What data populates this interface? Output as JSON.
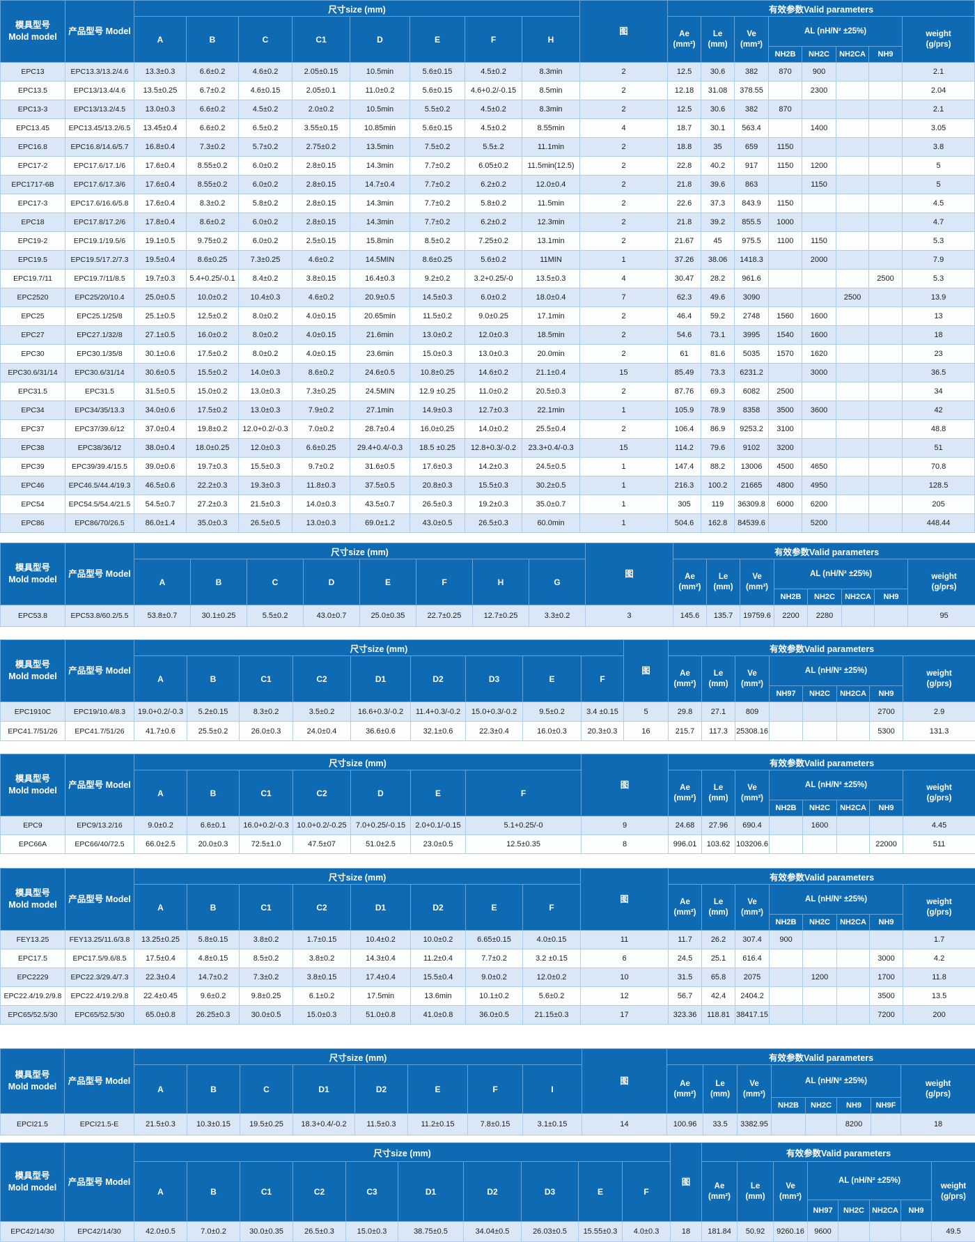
{
  "header_labels": {
    "mold_model": "模具型号\nMold model",
    "product_model": "产品型号",
    "model": "Model",
    "size": "尺寸size (mm)",
    "fig": "图",
    "valid_params": "有效参数Valid parameters",
    "ae": "Ae\n(mm²)",
    "le": "Le\n(mm)",
    "ve": "Ve\n(mm³)",
    "al": "AL (nH/N² ±25%)",
    "weight": "weight\n(g/prs)"
  },
  "colors": {
    "header_blue": "#0e6ab3",
    "row_alt_blue": "#d9e7f6",
    "row_white": "#fdfeff",
    "grid_line": "#aecdec"
  },
  "tables": [
    {
      "dim_cols": [
        "A",
        "B",
        "C",
        "C1",
        "D",
        "E",
        "F",
        "H"
      ],
      "al_cols": [
        "NH2B",
        "NH2C",
        "NH2CA",
        "NH9"
      ],
      "rows": [
        [
          "EPC13",
          "EPC13.3/13.2/4.6",
          "13.3±0.3",
          "6.6±0.2",
          "4.6±0.2",
          "2.05±0.15",
          "10.5min",
          "5.6±0.15",
          "4.5±0.2",
          "8.3min",
          "2",
          "12.5",
          "30.6",
          "382",
          "870",
          "900",
          "",
          "",
          "2.1"
        ],
        [
          "EPC13.5",
          "EPC13/13.4/4.6",
          "13.5±0.25",
          "6.7±0.2",
          "4.6±0.15",
          "2.05±0.1",
          "11.0±0.2",
          "5.6±0.15",
          "4.6+0.2/-0.15",
          "8.5min",
          "2",
          "12.18",
          "31.08",
          "378.55",
          "",
          "2300",
          "",
          "",
          "2.04"
        ],
        [
          "EPC13-3",
          "EPC13/13.2/4.5",
          "13.0±0.3",
          "6.6±0.2",
          "4.5±0.2",
          "2.0±0.2",
          "10.5min",
          "5.5±0.2",
          "4.5±0.2",
          "8.3min",
          "2",
          "12.5",
          "30.6",
          "382",
          "870",
          "",
          "",
          "",
          "2.1"
        ],
        [
          "EPC13.45",
          "EPC13.45/13.2/6.5",
          "13.45±0.4",
          "6.6±0.2",
          "6.5±0.2",
          "3.55±0.15",
          "10.85min",
          "5.6±0.15",
          "4.5±0.2",
          "8.55min",
          "4",
          "18.7",
          "30.1",
          "563.4",
          "",
          "1400",
          "",
          "",
          "3.05"
        ],
        [
          "EPC16.8",
          "EPC16.8/14.6/5.7",
          "16.8±0.4",
          "7.3±0.2",
          "5.7±0.2",
          "2.75±0.2",
          "13.5min",
          "7.5±0.2",
          "5.5±.2",
          "11.1min",
          "2",
          "18.8",
          "35",
          "659",
          "1150",
          "",
          "",
          "",
          "3.8"
        ],
        [
          "EPC17-2",
          "EPC17.6/17.1/6",
          "17.6±0.4",
          "8.55±0.2",
          "6.0±0.2",
          "2.8±0.15",
          "14.3min",
          "7.7±0.2",
          "6.05±0.2",
          "11.5min(12.5)",
          "2",
          "22.8",
          "40.2",
          "917",
          "1150",
          "1200",
          "",
          "",
          "5"
        ],
        [
          "EPC1717-6B",
          "EPC17.6/17.3/6",
          "17.6±0.4",
          "8.55±0.2",
          "6.0±0.2",
          "2.8±0.15",
          "14.7±0.4",
          "7.7±0.2",
          "6.2±0.2",
          "12.0±0.4",
          "2",
          "21.8",
          "39.6",
          "863",
          "",
          "1150",
          "",
          "",
          "5"
        ],
        [
          "EPC17-3",
          "EPC17.6/16.6/5.8",
          "17.6±0.4",
          "8.3±0.2",
          "5.8±0.2",
          "2.8±0.15",
          "14.3min",
          "7.7±0.2",
          "5.8±0.2",
          "11.5min",
          "2",
          "22.6",
          "37.3",
          "843.9",
          "1150",
          "",
          "",
          "",
          "4.5"
        ],
        [
          "EPC18",
          "EPC17.8/17.2/6",
          "17.8±0.4",
          "8.6±0.2",
          "6.0±0.2",
          "2.8±0.15",
          "14.3min",
          "7.7±0.2",
          "6.2±0.2",
          "12.3min",
          "2",
          "21.8",
          "39.2",
          "855.5",
          "1000",
          "",
          "",
          "",
          "4.7"
        ],
        [
          "EPC19-2",
          "EPC19.1/19.5/6",
          "19.1±0.5",
          "9.75±0.2",
          "6.0±0.2",
          "2.5±0.15",
          "15.8min",
          "8.5±0.2",
          "7.25±0.2",
          "13.1min",
          "2",
          "21.67",
          "45",
          "975.5",
          "1100",
          "1150",
          "",
          "",
          "5.3"
        ],
        [
          "EPC19.5",
          "EPC19.5/17.2/7.3",
          "19.5±0.4",
          "8.6±0.25",
          "7.3±0.25",
          "4.6±0.2",
          "14.5MIN",
          "8.6±0.25",
          "5.6±0.2",
          "11MIN",
          "1",
          "37.26",
          "38.06",
          "1418.3",
          "",
          "2000",
          "",
          "",
          "7.9"
        ],
        [
          "EPC19.7/11",
          "EPC19.7/11/8.5",
          "19.7±0.3",
          "5.4+0.25/-0.1",
          "8.4±0.2",
          "3.8±0.15",
          "16.4±0.3",
          "9.2±0.2",
          "3.2+0.25/-0",
          "13.5±0.3",
          "4",
          "30.47",
          "28.2",
          "961.6",
          "",
          "",
          "",
          "2500",
          "5.3"
        ],
        [
          "EPC2520",
          "EPC25/20/10.4",
          "25.0±0.5",
          "10.0±0.2",
          "10.4±0.3",
          "4.6±0.2",
          "20.9±0.5",
          "14.5±0.3",
          "6.0±0.2",
          "18.0±0.4",
          "7",
          "62.3",
          "49.6",
          "3090",
          "",
          "",
          "2500",
          "",
          "13.9"
        ],
        [
          "EPC25",
          "EPC25.1/25/8",
          "25.1±0.5",
          "12.5±0.2",
          "8.0±0.2",
          "4.0±0.15",
          "20.65min",
          "11.5±0.2",
          "9.0±0.25",
          "17.1min",
          "2",
          "46.4",
          "59.2",
          "2748",
          "1560",
          "1600",
          "",
          "",
          "13"
        ],
        [
          "EPC27",
          "EPC27.1/32/8",
          "27.1±0.5",
          "16.0±0.2",
          "8.0±0.2",
          "4.0±0.15",
          "21.6min",
          "13.0±0.2",
          "12.0±0.3",
          "18.5min",
          "2",
          "54.6",
          "73.1",
          "3995",
          "1540",
          "1600",
          "",
          "",
          "18"
        ],
        [
          "EPC30",
          "EPC30.1/35/8",
          "30.1±0.6",
          "17.5±0.2",
          "8.0±0.2",
          "4.0±0.15",
          "23.6min",
          "15.0±0.3",
          "13.0±0.3",
          "20.0min",
          "2",
          "61",
          "81.6",
          "5035",
          "1570",
          "1620",
          "",
          "",
          "23"
        ],
        [
          "EPC30.6/31/14",
          "EPC30.6/31/14",
          "30.6±0.5",
          "15.5±0.2",
          "14.0±0.3",
          "8.6±0.2",
          "24.6±0.5",
          "10.8±0.25",
          "14.6±0.2",
          "21.1±0.4",
          "15",
          "85.49",
          "73.3",
          "6231.2",
          "",
          "3000",
          "",
          "",
          "36.5"
        ],
        [
          "EPC31.5",
          "EPC31.5",
          "31.5±0.5",
          "15.0±0.2",
          "13.0±0.3",
          "7.3±0.25",
          "24.5MIN",
          "12.9 ±0.25",
          "11.0±0.2",
          "20.5±0.3",
          "2",
          "87.76",
          "69.3",
          "6082",
          "2500",
          "",
          "",
          "",
          "34"
        ],
        [
          "EPC34",
          "EPC34/35/13.3",
          "34.0±0.6",
          "17.5±0.2",
          "13.0±0.3",
          "7.9±0.2",
          "27.1min",
          "14.9±0.3",
          "12.7±0.3",
          "22.1min",
          "1",
          "105.9",
          "78.9",
          "8358",
          "3500",
          "3600",
          "",
          "",
          "42"
        ],
        [
          "EPC37",
          "EPC37/39.6/12",
          "37.0±0.4",
          "19.8±0.2",
          "12.0+0.2/-0.3",
          "7.0±0.2",
          "28.7±0.4",
          "16.0±0.25",
          "14.0±0.2",
          "25.5±0.4",
          "2",
          "106.4",
          "86.9",
          "9253.2",
          "3100",
          "",
          "",
          "",
          "48.8"
        ],
        [
          "EPC38",
          "EPC38/36/12",
          "38.0±0.4",
          "18.0±0.25",
          "12.0±0.3",
          "6.6±0.25",
          "29.4+0.4/-0.3",
          "18.5 ±0.25",
          "12.8+0.3/-0.2",
          "23.3+0.4/-0.3",
          "15",
          "114.2",
          "79.6",
          "9102",
          "3200",
          "",
          "",
          "",
          "51"
        ],
        [
          "EPC39",
          "EPC39/39.4/15.5",
          "39.0±0.6",
          "19.7±0.3",
          "15.5±0.3",
          "9.7±0.2",
          "31.6±0.5",
          "17.6±0.3",
          "14.2±0.3",
          "24.5±0.5",
          "1",
          "147.4",
          "88.2",
          "13006",
          "4500",
          "4650",
          "",
          "",
          "70.8"
        ],
        [
          "EPC46",
          "EPC46.5/44.4/19.3",
          "46.5±0.6",
          "22.2±0.3",
          "19.3±0.3",
          "11.8±0.3",
          "37.5±0.5",
          "20.8±0.3",
          "15.5±0.3",
          "30.2±0.5",
          "1",
          "216.3",
          "100.2",
          "21665",
          "4800",
          "4950",
          "",
          "",
          "128.5"
        ],
        [
          "EPC54",
          "EPC54.5/54.4/21.5",
          "54.5±0.7",
          "27.2±0.3",
          "21.5±0.3",
          "14.0±0.3",
          "43.5±0.7",
          "26.5±0.3",
          "19.2±0.3",
          "35.0±0.7",
          "1",
          "305",
          "119",
          "36309.8",
          "6000",
          "6200",
          "",
          "",
          "205"
        ],
        [
          "EPC86",
          "EPC86/70/26.5",
          "86.0±1.4",
          "35.0±0.3",
          "26.5±0.5",
          "13.0±0.3",
          "69.0±1.2",
          "43.0±0.5",
          "26.5±0.3",
          "60.0min",
          "1",
          "504.6",
          "162.8",
          "84539.6",
          "",
          "5200",
          "",
          "",
          "448.44"
        ]
      ]
    },
    {
      "dim_cols": [
        "A",
        "B",
        "C",
        "D",
        "E",
        "F",
        "H",
        "G"
      ],
      "al_cols": [
        "NH2B",
        "NH2C",
        "NH2CA",
        "NH9"
      ],
      "rows": [
        [
          "EPC53.8",
          "EPC53.8/60.2/5.5",
          "53.8±0.7",
          "30.1±0.25",
          "5.5±0.2",
          "43.0±0.7",
          "25.0±0.35",
          "22.7±0.25",
          "12.7±0.25",
          "3.3±0.2",
          "3",
          "145.6",
          "135.7",
          "19759.6",
          "2200",
          "2280",
          "",
          "",
          "95"
        ]
      ]
    },
    {
      "dim_cols": [
        "A",
        "B",
        "C1",
        "C2",
        "D1",
        "D2",
        "D3",
        "E",
        "F"
      ],
      "al_cols": [
        "NH97",
        "NH2C",
        "NH2CA",
        "NH9"
      ],
      "rows": [
        [
          "EPC1910C",
          "EPC19/10.4/8.3",
          "19.0+0.2/-0.3",
          "5.2±0.15",
          "8.3±0.2",
          "3.5±0.2",
          "16.6+0.3/-0.2",
          "11.4+0.3/-0.2",
          "15.0+0.3/-0.2",
          "9.5±0.2",
          "3.4 ±0.15",
          "5",
          "29.8",
          "27.1",
          "809",
          "",
          "",
          "",
          "2700",
          "2.9"
        ],
        [
          "EPC41.7/51/26",
          "EPC41.7/51/26",
          "41.7±0.6",
          "25.5±0.2",
          "26.0±0.3",
          "24.0±0.4",
          "36.6±0.6",
          "32.1±0.6",
          "22.3±0.4",
          "16.0±0.3",
          "20.3±0.3",
          "16",
          "215.7",
          "117.3",
          "25308.16",
          "",
          "",
          "",
          "5300",
          "131.3"
        ]
      ]
    },
    {
      "dim_cols": [
        "A",
        "B",
        "C1",
        "C2",
        "D",
        "E",
        "F"
      ],
      "al_cols": [
        "NH2B",
        "NH2C",
        "NH2CA",
        "NH9"
      ],
      "rows": [
        [
          "EPC9",
          "EPC9/13.2/16",
          "9.0±0.2",
          "6.6±0.1",
          "16.0+0.2/-0.3",
          "10.0+0.2/-0.25",
          "7.0+0.25/-0.15",
          "2.0+0.1/-0.15",
          "5.1+0.25/-0",
          "9",
          "24.68",
          "27.96",
          "690.4",
          "",
          "1600",
          "",
          "",
          "4.45"
        ],
        [
          "EPC66A",
          "EPC66/40/72.5",
          "66.0±2.5",
          "20.0±0.3",
          "72.5±1.0",
          "47.5±07",
          "51.0±2.5",
          "23.0±0.5",
          "12.5±0.35",
          "8",
          "996.01",
          "103.62",
          "103206.6",
          "",
          "",
          "",
          "22000",
          "511"
        ]
      ]
    },
    {
      "dim_cols": [
        "A",
        "B",
        "C1",
        "C2",
        "D1",
        "D2",
        "E",
        "F"
      ],
      "al_cols": [
        "NH2B",
        "NH2C",
        "NH2CA",
        "NH9"
      ],
      "rows": [
        [
          "FEY13.25",
          "FEY13.25/11.6/3.8",
          "13.25±0.25",
          "5.8±0.15",
          "3.8±0.2",
          "1.7±0.15",
          "10.4±0.2",
          "10.0±0.2",
          "6.65±0.15",
          "4.0±0.15",
          "11",
          "11.7",
          "26.2",
          "307.4",
          "900",
          "",
          "",
          "",
          "1.7"
        ],
        [
          "EPC17.5",
          "EPC17.5/9.6/8.5",
          "17.5±0.4",
          "4.8±0.15",
          "8.5±0.2",
          "3.8±0.2",
          "14.3±0.4",
          "11.2±0.4",
          "7.7±0.2",
          "3.2 ±0.15",
          "6",
          "24.5",
          "25.1",
          "616.4",
          "",
          "",
          "",
          "3000",
          "4.2"
        ],
        [
          "EPC2229",
          "EPC22.3/29.4/7.3",
          "22.3±0.4",
          "14.7±0.2",
          "7.3±0.2",
          "3.8±0.15",
          "17.4±0.4",
          "15.5±0.4",
          "9.0±0.2",
          "12.0±0.2",
          "10",
          "31.5",
          "65.8",
          "2075",
          "",
          "1200",
          "",
          "1700",
          "11.8"
        ],
        [
          "EPC22.4/19.2/9.8",
          "EPC22.4/19.2/9.8",
          "22.4±0.45",
          "9.6±0.2",
          "9.8±0.25",
          "6.1±0.2",
          "17.5min",
          "13.6min",
          "10.1±0.2",
          "5.6±0.2",
          "12",
          "56.7",
          "42.4",
          "2404.2",
          "",
          "",
          "",
          "3500",
          "13.5"
        ],
        [
          "EPC65/52.5/30",
          "EPC65/52.5/30",
          "65.0±0.8",
          "26.25±0.3",
          "30.0±0.5",
          "15.0±0.3",
          "51.0±0.8",
          "41.0±0.8",
          "36.0±0.5",
          "21.15±0.3",
          "17",
          "323.36",
          "118.81",
          "38417.15",
          "",
          "",
          "",
          "7200",
          "200"
        ]
      ]
    },
    {
      "dim_cols": [
        "A",
        "B",
        "C",
        "D1",
        "D2",
        "E",
        "F",
        "I"
      ],
      "al_cols": [
        "NH2B",
        "NH2C",
        "NH9",
        "NH9F"
      ],
      "rows": [
        [
          "EPCI21.5",
          "EPCI21.5-E",
          "21.5±0.3",
          "10.3±0.15",
          "19.5±0.25",
          "18.3+0.4/-0.2",
          "11.5±0.3",
          "11.2±0.15",
          "7.8±0.15",
          "3.1±0.15",
          "14",
          "100.96",
          "33.5",
          "3382.95",
          "",
          "",
          "8200",
          "",
          "18"
        ]
      ]
    },
    {
      "dim_cols": [
        "A",
        "B",
        "C1",
        "C2",
        "C3",
        "D1",
        "D2",
        "D3",
        "E",
        "F"
      ],
      "al_cols": [
        "NH97",
        "NH2C",
        "NH2CA",
        "NH9"
      ],
      "rows": [
        [
          "EPC42/14/30",
          "EPC42/14/30",
          "42.0±0.5",
          "7.0±0.2",
          "30.0±0.35",
          "26.5±0.3",
          "15.0±0.3",
          "38.75±0.5",
          "34.04±0.5",
          "26.03±0.5",
          "15.55±0.3",
          "4.0±0.3",
          "18",
          "181.84",
          "50.92",
          "9260.16",
          "9600",
          "",
          "",
          "",
          "49.5"
        ]
      ]
    }
  ]
}
